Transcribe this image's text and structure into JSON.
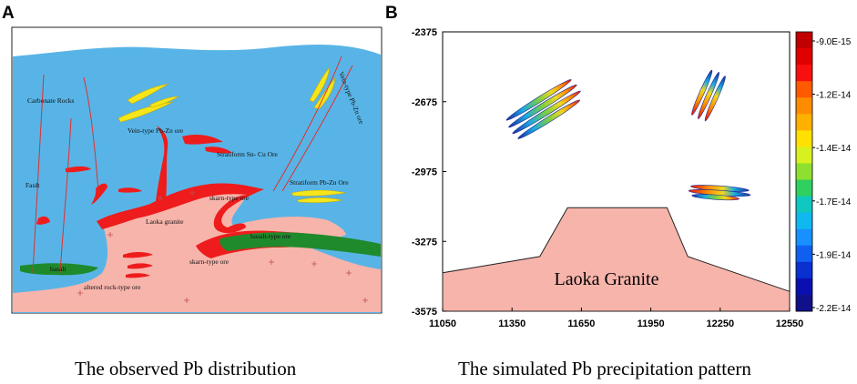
{
  "panel_a": {
    "label": "A",
    "caption": "The observed Pb distribution",
    "labels": {
      "carbonate": "Carbonate Rocks",
      "vein_left": "Vein-type Pb-Zn ore",
      "vein_right": "Vein-type Pb-Zn ore",
      "stratiform_sncu": "Stratiform Sn- Cu Ore",
      "stratiform_pbzn": "Stratiform Pb-Zn Ore",
      "fault": "Fault",
      "skarn_upper": "skarn-type ore",
      "granite": "Laoka granite",
      "basalt_type": "basalt-type ore",
      "skarn_lower": "skarn-type ore",
      "basalt": "basalt",
      "altered": "altered rock-type ore"
    },
    "colors": {
      "carbonate": "#58b4e6",
      "granite": "#f7b4ab",
      "ore_red": "#ee1c1c",
      "ore_yellow": "#f5e61a",
      "basalt": "#1f8a2c",
      "fault": "#e03030"
    }
  },
  "panel_b": {
    "label": "B",
    "caption": "The simulated Pb precipitation pattern",
    "granite_label": "Laoka Granite",
    "colorbar": {
      "labels": [
        "-9.0E-15",
        "-1.2E-14",
        "-1.4E-14",
        "-1.7E-14",
        "-1.9E-14",
        "-2.2E-14"
      ],
      "colors": [
        "#c00000",
        "#e00000",
        "#f81010",
        "#ff5a00",
        "#ff8c00",
        "#ffb000",
        "#ffe000",
        "#d8f020",
        "#8ee030",
        "#30d060",
        "#10c8c0",
        "#10b8f0",
        "#1890ff",
        "#1060f0",
        "#0a30d0",
        "#0a10b0",
        "#10108a"
      ]
    }
  },
  "chart_data": {
    "type": "scatter",
    "title": "",
    "xlabel": "",
    "ylabel": "",
    "xlim": [
      11050,
      12550
    ],
    "ylim": [
      -3575,
      -2375
    ],
    "xticks": [
      11050,
      11350,
      11650,
      11950,
      12250,
      12550
    ],
    "yticks": [
      -2375,
      -2675,
      -2975,
      -3275,
      -3575
    ],
    "value_range": [
      -2.2e-14,
      -9e-15
    ],
    "precipitation_zones": [
      {
        "name": "upper-left lenses",
        "x_range": [
          11360,
          11650
        ],
        "y_range": [
          -2815,
          -2585
        ],
        "count": 4
      },
      {
        "name": "upper-right lenses",
        "x_range": [
          12160,
          12260
        ],
        "y_range": [
          -2755,
          -2545
        ],
        "count": 3
      },
      {
        "name": "middle-right lenses",
        "x_range": [
          12160,
          12370
        ],
        "y_range": [
          -3055,
          -2995
        ],
        "count": 3
      }
    ],
    "granite_outline": [
      [
        11050,
        -3410
      ],
      [
        11470,
        -3340
      ],
      [
        11590,
        -3130
      ],
      [
        12020,
        -3130
      ],
      [
        12110,
        -3340
      ],
      [
        12550,
        -3490
      ]
    ]
  }
}
